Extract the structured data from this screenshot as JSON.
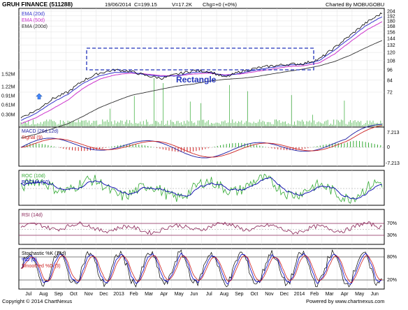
{
  "header": {
    "symbol": "GRUH FINANCE (511288)",
    "date": "19/06/2014",
    "close": "C=199.15",
    "volume": "V=17.2K",
    "change": "Chg=+0 (+0%)",
    "credit": "Charted By MOBUGOBU"
  },
  "footer": {
    "copyright": "Copyright © 2014 ChartNexus",
    "powered": "Powered by www.chartnexus.com"
  },
  "annotation": {
    "label": "Rectangle"
  },
  "colors": {
    "price": "#000000",
    "ema20": "#3333cc",
    "ema50": "#cc33cc",
    "ema200": "#333333",
    "volume": "#33aa33",
    "macd": "#1a1aa0",
    "signal": "#cc2222",
    "roc": "#33aa33",
    "rocma": "#0000aa",
    "rsi": "#882255",
    "stochK": "#000000",
    "stochD": "#0000cc",
    "stochDs": "#cc2222",
    "rectangle": "#2233bb",
    "panelBorder": "#000000",
    "grid": "#cccccc"
  },
  "chart_data": {
    "type": "line",
    "x": [
      "Jul",
      "Aug",
      "Sep",
      "Oct",
      "Nov",
      "Dec",
      "2013",
      "Feb",
      "Mar",
      "Apr",
      "May",
      "Jun",
      "Jul",
      "Aug",
      "Sep",
      "Oct",
      "Nov",
      "Dec",
      "2014",
      "Feb",
      "Mar",
      "Apr",
      "May",
      "Jun"
    ],
    "price_panel": {
      "legend": [
        "EMA (20d)",
        "EMA (50d)",
        "EMA (200d)"
      ],
      "y_ticks": [
        "204",
        "192",
        "180",
        "168",
        "156",
        "144",
        "132",
        "120",
        "108",
        "96",
        "84",
        "72"
      ],
      "volume_ticks": [
        "1.52M",
        "1.22M",
        "0.91M",
        "0.61M",
        "0.30M"
      ],
      "close": [
        52,
        57,
        66,
        72,
        84,
        92,
        96,
        94,
        89,
        86,
        91,
        95,
        94,
        87,
        94,
        98,
        101,
        103,
        104,
        110,
        128,
        150,
        176,
        199
      ],
      "ema20": [
        50,
        55,
        63,
        70,
        81,
        89,
        93,
        93,
        90,
        88,
        89,
        93,
        93,
        89,
        92,
        96,
        99,
        102,
        103,
        108,
        124,
        145,
        170,
        190
      ],
      "ema50": [
        48,
        52,
        58,
        65,
        76,
        85,
        90,
        92,
        91,
        89,
        89,
        91,
        92,
        90,
        91,
        94,
        97,
        100,
        101,
        105,
        118,
        138,
        160,
        178
      ],
      "ema200": [
        40,
        42,
        45,
        48,
        53,
        59,
        64,
        69,
        72,
        75,
        78,
        80,
        83,
        85,
        86,
        88,
        91,
        94,
        97,
        101,
        107,
        116,
        128,
        140
      ]
    },
    "macd_panel": {
      "legend": [
        "MACD (26d,12d)",
        "Signal (9)"
      ],
      "y_ticks": [
        "7.213",
        "0",
        "-7.213"
      ]
    },
    "roc_panel": {
      "legend": [
        "ROC (10d)",
        "ROCMA (10)"
      ]
    },
    "rsi_panel": {
      "legend": "RSI (14d)",
      "y_ticks": [
        "70%",
        "30%"
      ]
    },
    "stoch_panel": {
      "legend": [
        "Stochastic %K (14d)",
        "%D (3)",
        "Smoothed %D (3)"
      ],
      "y_ticks": [
        "80%",
        "20%"
      ]
    }
  }
}
